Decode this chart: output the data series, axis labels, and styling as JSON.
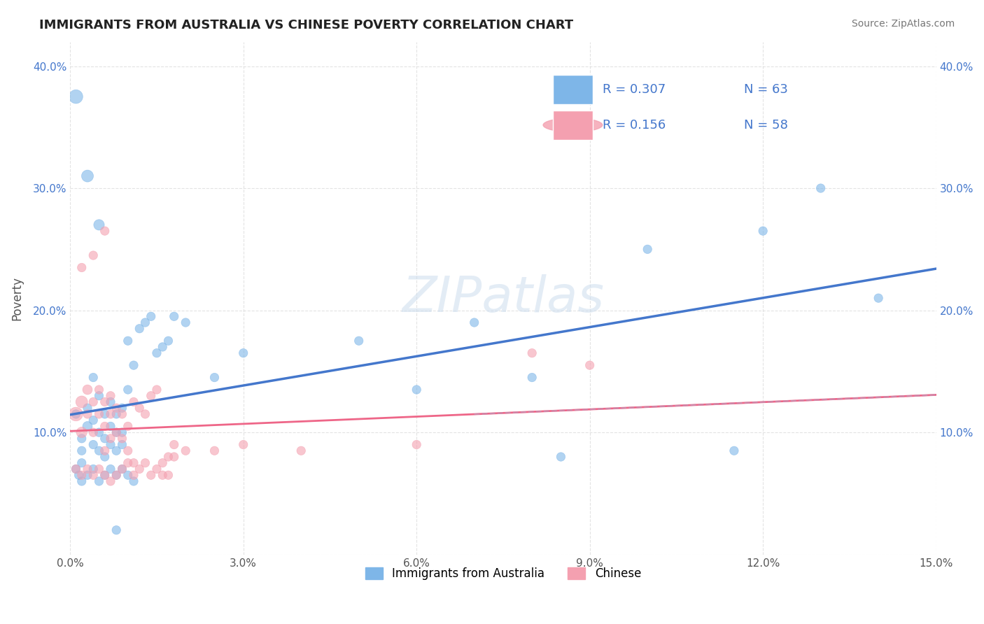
{
  "title": "IMMIGRANTS FROM AUSTRALIA VS CHINESE POVERTY CORRELATION CHART",
  "source": "Source: ZipAtlas.com",
  "xlabel_bottom": "",
  "ylabel": "Poverty",
  "watermark": "ZIPatlas",
  "legend_label1": "Immigrants from Australia",
  "legend_label2": "Chinese",
  "R1": 0.307,
  "N1": 63,
  "R2": 0.156,
  "N2": 58,
  "xlim": [
    0.0,
    0.15
  ],
  "ylim": [
    0.0,
    0.42
  ],
  "xticks": [
    0.0,
    0.03,
    0.06,
    0.09,
    0.12,
    0.15
  ],
  "xtick_labels": [
    "0.0%",
    "3.0%",
    "6.0%",
    "9.0%",
    "12.0%",
    "15.0%"
  ],
  "yticks": [
    0.0,
    0.1,
    0.2,
    0.3,
    0.4
  ],
  "ytick_labels": [
    "",
    "10.0%",
    "20.0%",
    "30.0%",
    "40.0%"
  ],
  "color_blue": "#7EB6E8",
  "color_pink": "#F4A0B0",
  "color_blue_line": "#4477CC",
  "color_pink_line": "#EE6688",
  "color_pink_dashed": "#CC88AA",
  "background": "#FFFFFF",
  "grid_color": "#DDDDDD",
  "title_color": "#222222",
  "scatter_blue": [
    [
      0.001,
      0.115
    ],
    [
      0.002,
      0.095
    ],
    [
      0.002,
      0.085
    ],
    [
      0.003,
      0.12
    ],
    [
      0.003,
      0.105
    ],
    [
      0.004,
      0.11
    ],
    [
      0.004,
      0.09
    ],
    [
      0.004,
      0.145
    ],
    [
      0.005,
      0.13
    ],
    [
      0.005,
      0.1
    ],
    [
      0.005,
      0.085
    ],
    [
      0.006,
      0.115
    ],
    [
      0.006,
      0.095
    ],
    [
      0.006,
      0.08
    ],
    [
      0.007,
      0.125
    ],
    [
      0.007,
      0.105
    ],
    [
      0.007,
      0.09
    ],
    [
      0.008,
      0.115
    ],
    [
      0.008,
      0.1
    ],
    [
      0.008,
      0.085
    ],
    [
      0.009,
      0.12
    ],
    [
      0.009,
      0.1
    ],
    [
      0.009,
      0.09
    ],
    [
      0.01,
      0.175
    ],
    [
      0.01,
      0.135
    ],
    [
      0.011,
      0.155
    ],
    [
      0.012,
      0.185
    ],
    [
      0.013,
      0.19
    ],
    [
      0.014,
      0.195
    ],
    [
      0.015,
      0.165
    ],
    [
      0.016,
      0.17
    ],
    [
      0.017,
      0.175
    ],
    [
      0.018,
      0.195
    ],
    [
      0.02,
      0.19
    ],
    [
      0.025,
      0.145
    ],
    [
      0.03,
      0.165
    ],
    [
      0.001,
      0.375
    ],
    [
      0.003,
      0.31
    ],
    [
      0.005,
      0.27
    ],
    [
      0.002,
      0.075
    ],
    [
      0.001,
      0.07
    ],
    [
      0.0015,
      0.065
    ],
    [
      0.002,
      0.06
    ],
    [
      0.003,
      0.065
    ],
    [
      0.004,
      0.07
    ],
    [
      0.005,
      0.06
    ],
    [
      0.006,
      0.065
    ],
    [
      0.007,
      0.07
    ],
    [
      0.008,
      0.065
    ],
    [
      0.009,
      0.07
    ],
    [
      0.01,
      0.065
    ],
    [
      0.011,
      0.06
    ],
    [
      0.008,
      0.02
    ],
    [
      0.05,
      0.175
    ],
    [
      0.06,
      0.135
    ],
    [
      0.07,
      0.19
    ],
    [
      0.08,
      0.145
    ],
    [
      0.1,
      0.25
    ],
    [
      0.12,
      0.265
    ],
    [
      0.13,
      0.3
    ],
    [
      0.14,
      0.21
    ],
    [
      0.115,
      0.085
    ],
    [
      0.085,
      0.08
    ]
  ],
  "scatter_pink": [
    [
      0.001,
      0.115
    ],
    [
      0.002,
      0.125
    ],
    [
      0.002,
      0.1
    ],
    [
      0.003,
      0.135
    ],
    [
      0.003,
      0.115
    ],
    [
      0.004,
      0.125
    ],
    [
      0.004,
      0.1
    ],
    [
      0.005,
      0.135
    ],
    [
      0.005,
      0.115
    ],
    [
      0.006,
      0.125
    ],
    [
      0.006,
      0.105
    ],
    [
      0.006,
      0.085
    ],
    [
      0.007,
      0.13
    ],
    [
      0.007,
      0.115
    ],
    [
      0.007,
      0.095
    ],
    [
      0.008,
      0.12
    ],
    [
      0.008,
      0.1
    ],
    [
      0.009,
      0.115
    ],
    [
      0.009,
      0.095
    ],
    [
      0.01,
      0.105
    ],
    [
      0.01,
      0.085
    ],
    [
      0.011,
      0.125
    ],
    [
      0.011,
      0.075
    ],
    [
      0.012,
      0.12
    ],
    [
      0.013,
      0.115
    ],
    [
      0.014,
      0.13
    ],
    [
      0.015,
      0.135
    ],
    [
      0.016,
      0.075
    ],
    [
      0.017,
      0.08
    ],
    [
      0.018,
      0.09
    ],
    [
      0.002,
      0.235
    ],
    [
      0.004,
      0.245
    ],
    [
      0.006,
      0.265
    ],
    [
      0.001,
      0.07
    ],
    [
      0.002,
      0.065
    ],
    [
      0.003,
      0.07
    ],
    [
      0.004,
      0.065
    ],
    [
      0.005,
      0.07
    ],
    [
      0.006,
      0.065
    ],
    [
      0.007,
      0.06
    ],
    [
      0.008,
      0.065
    ],
    [
      0.009,
      0.07
    ],
    [
      0.01,
      0.075
    ],
    [
      0.011,
      0.065
    ],
    [
      0.012,
      0.07
    ],
    [
      0.013,
      0.075
    ],
    [
      0.014,
      0.065
    ],
    [
      0.015,
      0.07
    ],
    [
      0.016,
      0.065
    ],
    [
      0.017,
      0.065
    ],
    [
      0.018,
      0.08
    ],
    [
      0.02,
      0.085
    ],
    [
      0.025,
      0.085
    ],
    [
      0.03,
      0.09
    ],
    [
      0.04,
      0.085
    ],
    [
      0.06,
      0.09
    ],
    [
      0.08,
      0.165
    ],
    [
      0.09,
      0.155
    ]
  ],
  "scatter_blue_sizes": [
    80,
    80,
    80,
    80,
    100,
    80,
    80,
    80,
    80,
    80,
    80,
    80,
    80,
    80,
    80,
    80,
    80,
    80,
    80,
    80,
    80,
    80,
    80,
    80,
    80,
    80,
    80,
    80,
    80,
    80,
    80,
    80,
    80,
    80,
    80,
    80,
    200,
    150,
    120,
    80,
    80,
    80,
    80,
    80,
    80,
    80,
    80,
    80,
    80,
    80,
    80,
    80,
    80,
    80,
    80,
    80,
    80,
    80,
    80,
    80,
    80,
    80,
    80
  ],
  "scatter_pink_sizes": [
    200,
    150,
    120,
    100,
    80,
    80,
    80,
    80,
    80,
    80,
    80,
    80,
    80,
    80,
    80,
    80,
    80,
    80,
    80,
    80,
    80,
    80,
    80,
    80,
    80,
    80,
    80,
    80,
    80,
    80,
    80,
    80,
    80,
    80,
    80,
    80,
    80,
    80,
    80,
    80,
    80,
    80,
    80,
    80,
    80,
    80,
    80,
    80,
    80,
    80,
    80,
    80,
    80,
    80,
    80,
    80,
    80,
    80
  ]
}
